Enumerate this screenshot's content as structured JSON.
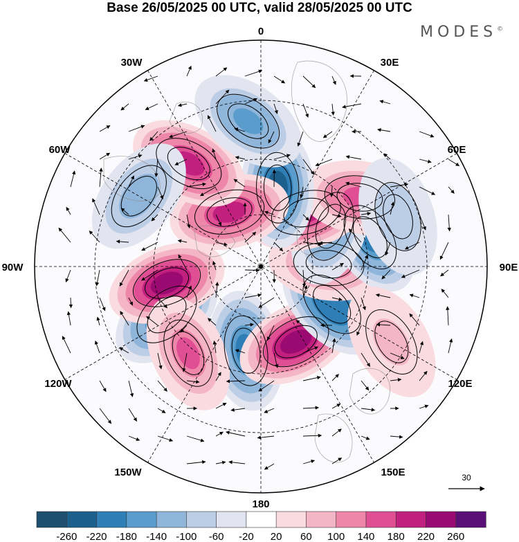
{
  "title": "Base 26/05/2025 00 UTC, valid 28/05/2025 00 UTC",
  "logo": "MODES",
  "logo_mark": "©",
  "longitude_labels": {
    "lon_0": "0",
    "lon_30e": "30E",
    "lon_60e": "60E",
    "lon_90e": "90E",
    "lon_120e": "120E",
    "lon_150e": "150E",
    "lon_180": "180",
    "lon_150w": "150W",
    "lon_120w": "120W",
    "lon_90w": "90W",
    "lon_60w": "60W",
    "lon_30w": "30W"
  },
  "reference_vector": {
    "label": "30"
  },
  "colorbar": {
    "tick_labels": [
      "-260",
      "-220",
      "-180",
      "-140",
      "-100",
      "-60",
      "-20",
      "20",
      "60",
      "100",
      "140",
      "180",
      "220",
      "260"
    ],
    "colors": [
      "#1f4f6e",
      "#1c5f8c",
      "#2f7fb6",
      "#5a9ccc",
      "#8fb5da",
      "#bccde6",
      "#e2e4f0",
      "#ffffff",
      "#f9dbe0",
      "#f4b6c6",
      "#ee86aa",
      "#e04f94",
      "#c2207f",
      "#9b0a70",
      "#5b1078"
    ]
  },
  "map": {
    "projection": "north polar stereographic",
    "anomaly_centers": [
      {
        "lon": -10,
        "lat": 56,
        "value": -200,
        "label": "blue trough near 0"
      },
      {
        "lon": 25,
        "lat": 57,
        "value": 220,
        "label": "magenta ridge Scandinavia"
      },
      {
        "lon": 62,
        "lat": 58,
        "value": -220,
        "label": "blue trough Western Siberia"
      },
      {
        "lon": -63,
        "lat": 48,
        "value": -200,
        "label": "blue trough Canada"
      },
      {
        "lon": -80,
        "lat": 52,
        "value": 240,
        "label": "magenta ridge Hudson Bay"
      },
      {
        "lon": 92,
        "lat": 63,
        "value": 130,
        "label": "pink ridge central Siberia"
      },
      {
        "lon": 105,
        "lat": 45,
        "value": -200,
        "label": "blue trough Mongolia"
      },
      {
        "lon": 120,
        "lat": 58,
        "value": -160,
        "label": "blue trough East Siberia"
      },
      {
        "lon": 140,
        "lat": 62,
        "value": 200,
        "label": "magenta ridge Yakutia"
      },
      {
        "lon": 125,
        "lat": 42,
        "value": 160,
        "label": "pink ridge Manchuria"
      },
      {
        "lon": 168,
        "lat": 58,
        "value": -240,
        "label": "deep blue trough Bering"
      },
      {
        "lon": -150,
        "lat": 65,
        "value": 200,
        "label": "magenta ridge Alaska"
      },
      {
        "lon": -145,
        "lat": 40,
        "value": 200,
        "label": "magenta ridge North Pacific"
      },
      {
        "lon": -175,
        "lat": 32,
        "value": -160,
        "label": "blue trough subtropical Pacific"
      },
      {
        "lon": -120,
        "lat": 34,
        "value": -140,
        "label": "blue trough W USA"
      },
      {
        "lon": -40,
        "lat": 45,
        "value": 140,
        "label": "pink ridge N Atlantic"
      },
      {
        "lon": 110,
        "lat": 32,
        "value": -100,
        "label": "blue trough China"
      },
      {
        "lon": 60,
        "lat": 30,
        "value": 80,
        "label": "pink ridge Iran"
      }
    ]
  }
}
